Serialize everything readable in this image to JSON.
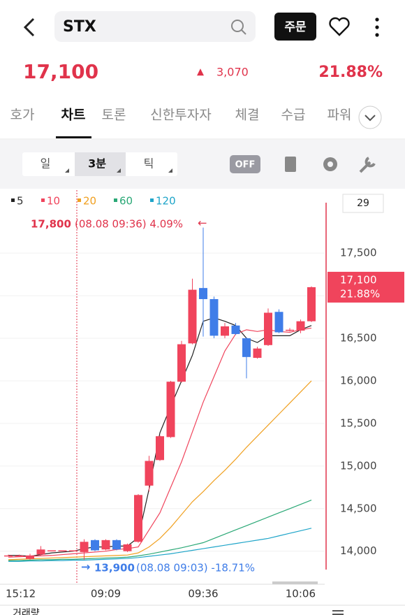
{
  "header": {
    "search": "STX",
    "order": "주문"
  },
  "price": {
    "value": "17,100",
    "change_icon": "▲",
    "change": "3,070",
    "rate": "21.88%"
  },
  "tabs": [
    "호가",
    "차트",
    "토론",
    "신한투자자",
    "체결",
    "수급",
    "파워"
  ],
  "toolbar": {
    "periods": [
      "일",
      "3분",
      "틱"
    ],
    "toggle": "OFF"
  },
  "chart_data": {
    "type": "candlestick",
    "visible_count": "29",
    "categories": [
      "15:12",
      null,
      null,
      null,
      null,
      null,
      null,
      null,
      null,
      "09:09",
      null,
      null,
      null,
      null,
      null,
      null,
      null,
      null,
      "09:36",
      null,
      null,
      null,
      null,
      null,
      null,
      null,
      null,
      null,
      "10:06"
    ],
    "open": [
      13950,
      13950,
      13910,
      13960,
      14010,
      14010,
      14010,
      13990,
      14130,
      14020,
      14130,
      14000,
      14110,
      14770,
      15070,
      15340,
      15990,
      16440,
      17090,
      16960,
      16530,
      16650,
      16500,
      16270,
      16420,
      16810,
      16600,
      16590,
      16700
    ],
    "high": [
      13960,
      13960,
      13970,
      14060,
      14010,
      14010,
      14010,
      14140,
      14140,
      14140,
      14140,
      14090,
      14670,
      15120,
      15360,
      16000,
      16470,
      17200,
      17800,
      16990,
      16680,
      16680,
      16510,
      16400,
      16850,
      16840,
      16620,
      16720,
      17110
    ],
    "low": [
      13940,
      13940,
      13900,
      13950,
      14010,
      14010,
      14010,
      13900,
      14000,
      14010,
      14010,
      13990,
      14100,
      14700,
      15060,
      15330,
      15980,
      16430,
      16520,
      16500,
      16500,
      16540,
      16030,
      16260,
      16410,
      16560,
      16580,
      16560,
      16690
    ],
    "close": [
      13950,
      13950,
      13950,
      14020,
      14010,
      14010,
      14010,
      14110,
      14010,
      14130,
      14020,
      14080,
      14660,
      15060,
      15350,
      15990,
      16430,
      17070,
      16960,
      16530,
      16640,
      16550,
      16280,
      16380,
      16800,
      16570,
      16600,
      16700,
      17100
    ],
    "up_color": "#f0445c",
    "down_color": "#3f7de8",
    "series": [
      {
        "name": "5",
        "color": "#222222",
        "values": [
          13950,
          13950,
          13940,
          13960,
          13980,
          13990,
          14000,
          14030,
          14050,
          14050,
          14060,
          14060,
          14160,
          14730,
          15390,
          15700,
          16000,
          16300,
          16700,
          16740,
          16700,
          16650,
          16500,
          16450,
          16530,
          16530,
          16530,
          16600,
          16650
        ]
      },
      {
        "name": "10",
        "color": "#f0445c",
        "values": [
          13930,
          13935,
          13940,
          13945,
          13950,
          13960,
          13970,
          13980,
          13990,
          14000,
          14020,
          14030,
          14050,
          14250,
          14450,
          14750,
          15050,
          15400,
          15750,
          16050,
          16350,
          16550,
          16600,
          16580,
          16600,
          16580,
          16570,
          16600,
          16620
        ]
      },
      {
        "name": "20",
        "color": "#f0a020",
        "values": [
          13900,
          13905,
          13910,
          13915,
          13920,
          13925,
          13930,
          13935,
          13940,
          13945,
          13950,
          13955,
          13980,
          14050,
          14150,
          14280,
          14430,
          14580,
          14700,
          14830,
          14950,
          15080,
          15220,
          15350,
          15480,
          15610,
          15740,
          15870,
          16000
        ]
      },
      {
        "name": "60",
        "color": "#2aa876",
        "values": [
          13890,
          13890,
          13895,
          13900,
          13900,
          13905,
          13905,
          13910,
          13915,
          13920,
          13925,
          13930,
          13945,
          13965,
          13990,
          14015,
          14040,
          14070,
          14100,
          14150,
          14200,
          14250,
          14300,
          14350,
          14400,
          14450,
          14500,
          14550,
          14600
        ]
      },
      {
        "name": "120",
        "color": "#1fa5c9",
        "values": [
          13880,
          13880,
          13885,
          13885,
          13890,
          13890,
          13895,
          13895,
          13900,
          13905,
          13910,
          13915,
          13925,
          13940,
          13955,
          13970,
          13990,
          14010,
          14030,
          14050,
          14070,
          14090,
          14110,
          14130,
          14150,
          14180,
          14210,
          14240,
          14270
        ]
      }
    ],
    "ylim": [
      13620,
      18240
    ],
    "yticks": [
      {
        "value": 14000,
        "label": "14,000"
      },
      {
        "value": 14500,
        "label": "14,500"
      },
      {
        "value": 15000,
        "label": "15,000"
      },
      {
        "value": 15500,
        "label": "15,500"
      },
      {
        "value": 16000,
        "label": "16,000"
      },
      {
        "value": 16500,
        "label": "16,500"
      },
      {
        "value": 17000,
        "label": "17,000"
      },
      {
        "value": 17500,
        "label": "17,500"
      }
    ],
    "high_annotation": {
      "price": "17,800",
      "detail": "(08.08 09:36) 4.09%",
      "arrow": "←"
    },
    "low_annotation": {
      "arrow": "→",
      "price": "13,900",
      "detail": "(08.08 09:03) -18.71%"
    },
    "last_tag": {
      "price": "17,100",
      "rate": "21.88%"
    }
  },
  "bottom": {
    "label": "거래량"
  }
}
